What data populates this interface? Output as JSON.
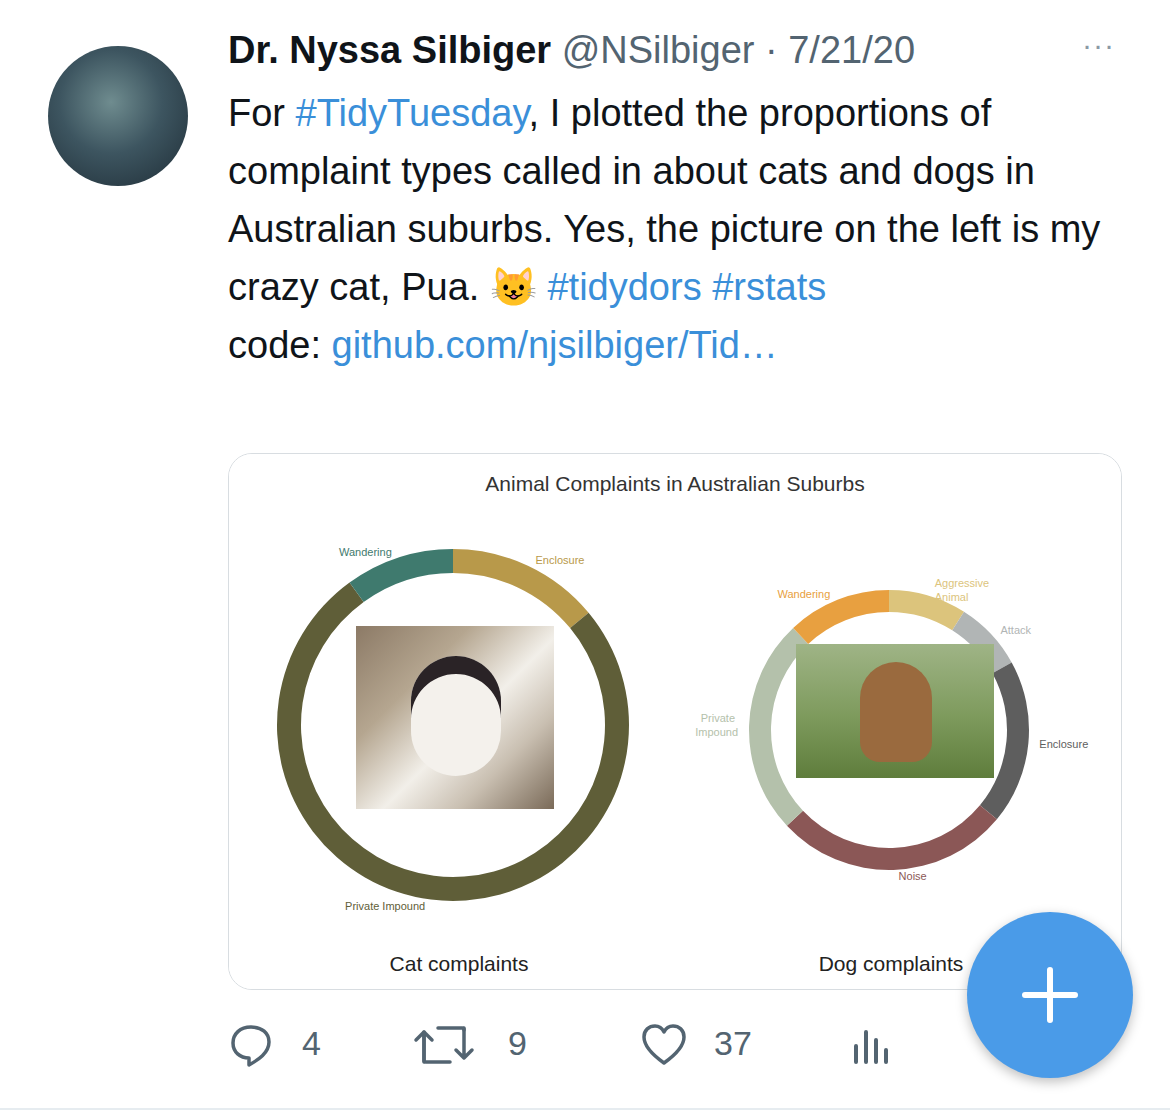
{
  "tweet": {
    "name": "Dr. Nyssa Silbiger",
    "handle": "@NSilbiger",
    "separator": "·",
    "date": "7/21/20",
    "menu": "···",
    "body": [
      {
        "text": "For "
      },
      {
        "text": "#TidyTuesday",
        "link": true
      },
      {
        "text": ", I plotted the proportions of complaint types called in about cats and dogs in Australian suburbs.  Yes, the picture on the left is my crazy cat, Pua. 😺 "
      },
      {
        "text": "#tidydors",
        "link": true
      },
      {
        "text": " "
      },
      {
        "text": "#rstats",
        "link": true
      }
    ],
    "code_label": "code: ",
    "code_link": "github.com/njsilbiger/Tid…",
    "replies": 4,
    "retweets": 9,
    "likes": 37
  },
  "chart_title": "Animal Complaints in Australian Suburbs",
  "chart_data": [
    {
      "type": "pie",
      "title": "Cat complaints",
      "categories": [
        "Enclosure",
        "Private Impound",
        "Wandering"
      ],
      "values": [
        14,
        76,
        10
      ],
      "colors": [
        "#b8994a",
        "#5f5e38",
        "#3f7a6e"
      ]
    },
    {
      "type": "pie",
      "title": "Dog complaints",
      "categories": [
        "Aggressive Animal",
        "Attack",
        "Enclosure",
        "Noise",
        "Private Impound",
        "Wandering"
      ],
      "values": [
        9,
        8,
        19,
        27,
        25,
        12
      ],
      "colors": [
        "#dcc47c",
        "#b1b5b5",
        "#5e5e5e",
        "#8b5756",
        "#b4c1ab",
        "#e8a040"
      ]
    }
  ]
}
